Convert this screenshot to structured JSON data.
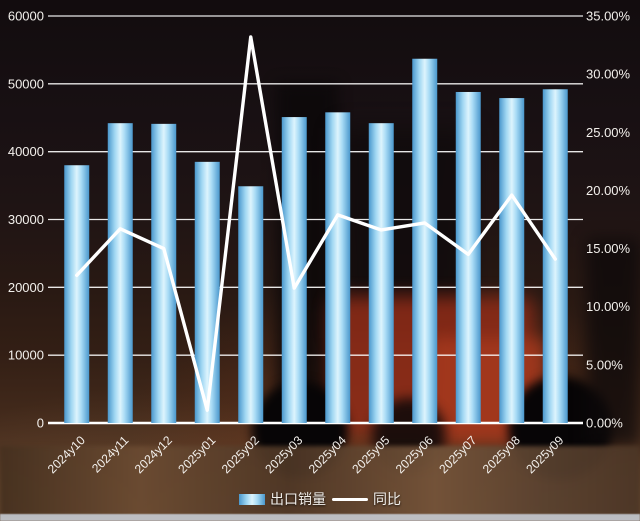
{
  "colors": {
    "bar_edge": "#4a97cc",
    "bar_center": "#ddf4fd",
    "trend_line": "#ffffff",
    "gridline": "#ffffff",
    "axis_text": "#f3f0ec"
  },
  "chart_data": {
    "type": "bar",
    "subtype": "combo-bar-line",
    "title": "",
    "categories": [
      "2024y10",
      "2024y11",
      "2024y12",
      "2025y01",
      "2025y02",
      "2025y03",
      "2025y04",
      "2025y05",
      "2025y06",
      "2025y07",
      "2025y08",
      "2025y09"
    ],
    "series": [
      {
        "name": "出口销量",
        "type": "bar",
        "axis": "left",
        "values": [
          38000,
          44200,
          44100,
          38500,
          34900,
          45100,
          45800,
          44200,
          53700,
          48800,
          47900,
          49200
        ]
      },
      {
        "name": "同比",
        "type": "line",
        "axis": "right",
        "unit": "%",
        "values": [
          12.7,
          16.7,
          15.0,
          1.1,
          33.2,
          11.6,
          17.9,
          16.6,
          17.2,
          14.5,
          19.6,
          14.1
        ]
      }
    ],
    "left_axis": {
      "min": 0,
      "max": 60000,
      "step": 10000,
      "tick_labels": [
        "0",
        "10000",
        "20000",
        "30000",
        "40000",
        "50000",
        "60000"
      ]
    },
    "right_axis": {
      "min": 0,
      "max": 35,
      "step": 5,
      "tick_labels": [
        "0.00%",
        "5.00%",
        "10.00%",
        "15.00%",
        "20.00%",
        "25.00%",
        "30.00%",
        "35.00%"
      ]
    },
    "grid": true,
    "legend_position": "bottom",
    "x_label_rotation": -45
  },
  "legend": {
    "bar_label": "出口销量",
    "line_label": "同比"
  }
}
